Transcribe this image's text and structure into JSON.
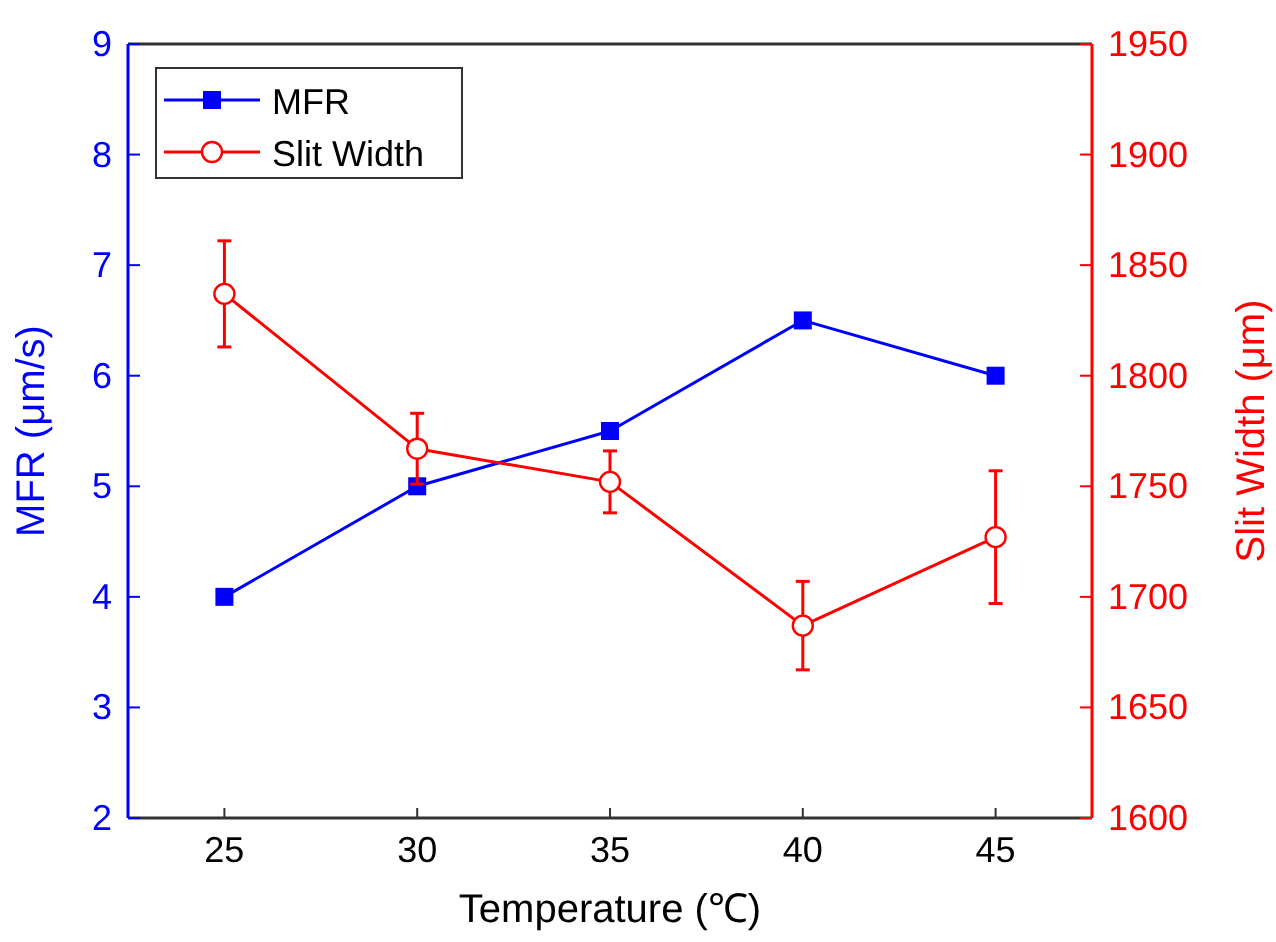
{
  "chart_data": {
    "type": "line",
    "xlabel": "Temperature (℃)",
    "ylabel": "MFR (μm/s)",
    "y2label": "Slit Width (μm)",
    "x": [
      25,
      30,
      35,
      40,
      45
    ],
    "xlim": [
      22.5,
      47.5
    ],
    "xticks": [
      25,
      30,
      35,
      40,
      45
    ],
    "ylim": [
      2,
      9
    ],
    "yticks": [
      2,
      3,
      4,
      5,
      6,
      7,
      8,
      9
    ],
    "y2lim": [
      1600,
      1950
    ],
    "y2ticks": [
      1600,
      1650,
      1700,
      1750,
      1800,
      1850,
      1900,
      1950
    ],
    "legend": "top left",
    "grid": false,
    "series": [
      {
        "name": "MFR",
        "color": "#0000ff",
        "marker": "square",
        "values": [
          4,
          5,
          5.5,
          6.5,
          6
        ]
      },
      {
        "name": "Slit Width",
        "color": "#ff0000",
        "marker": "circle",
        "axis": "y2",
        "values": [
          1837,
          1767,
          1752,
          1687,
          1727
        ],
        "errors": [
          24,
          16,
          14,
          20,
          30
        ]
      }
    ]
  }
}
